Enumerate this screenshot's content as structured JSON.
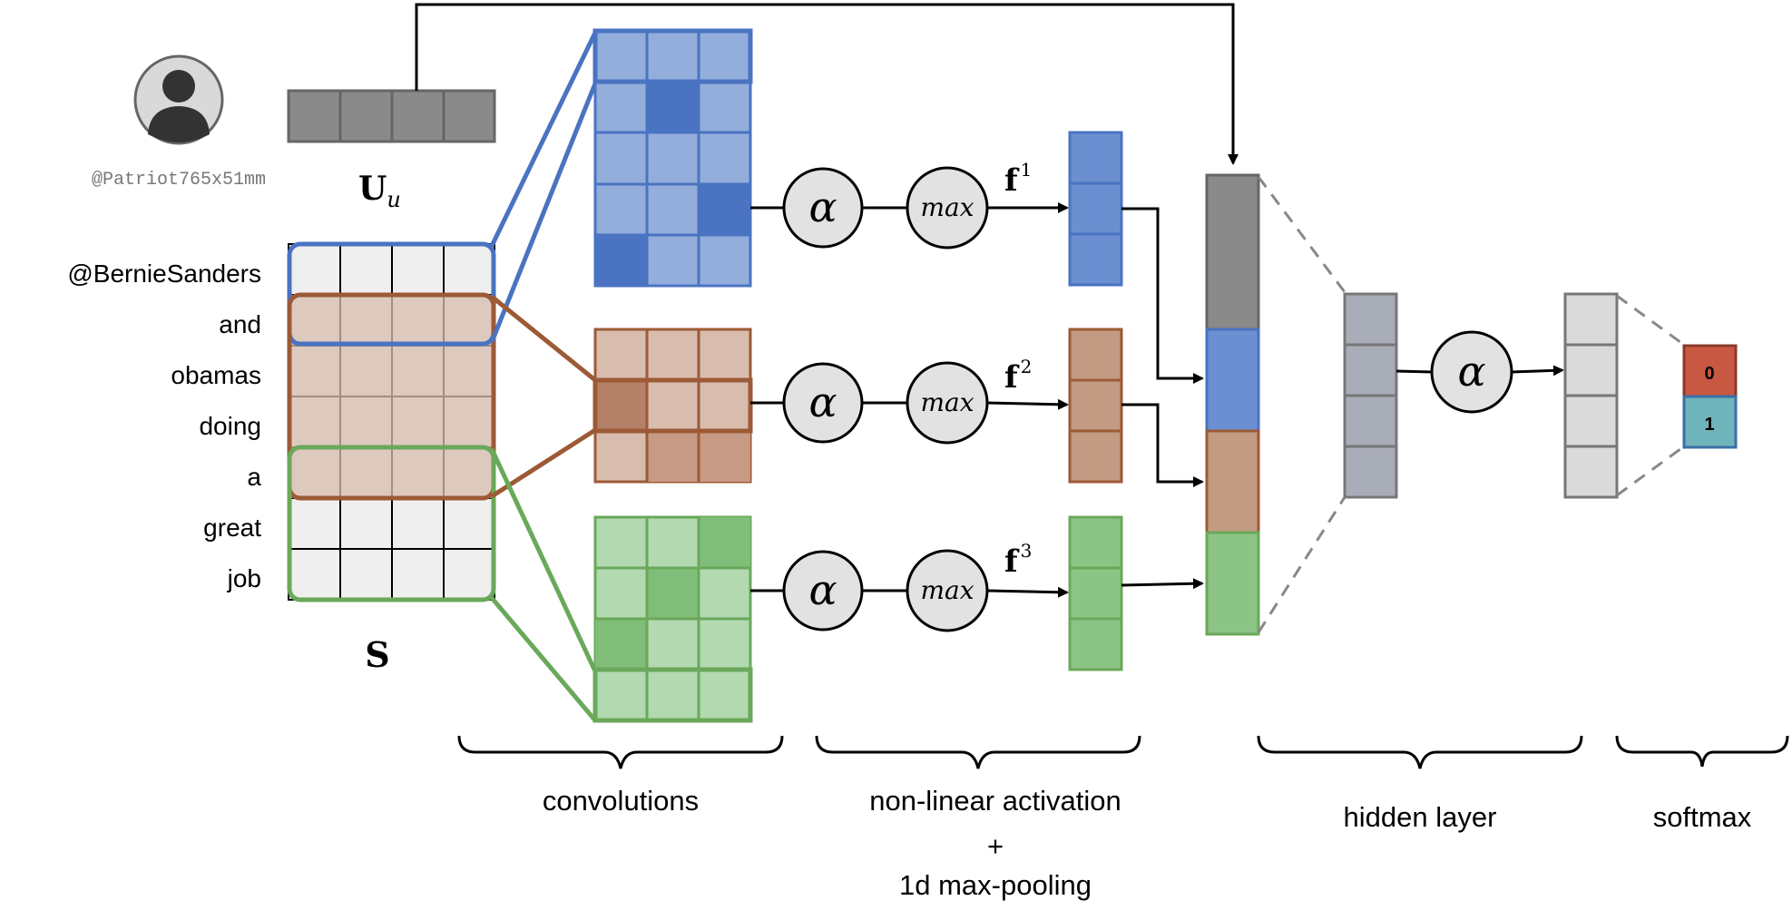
{
  "user": {
    "handle": "@Patriot765x51mm",
    "icon": "user-avatar-icon"
  },
  "labels": {
    "user_vector_main": "U",
    "user_vector_sub": "u",
    "sentence_matrix": "S",
    "alpha": "α",
    "max": "max",
    "f_base": "f",
    "f_sup": [
      "1",
      "2",
      "3"
    ],
    "softmax_outputs": [
      "0",
      "1"
    ]
  },
  "tokens": [
    "@BernieSanders",
    "and",
    "obamas",
    "doing",
    "a",
    "great",
    "job"
  ],
  "brackets": {
    "convolutions": "convolutions",
    "activation_lines": [
      "non-linear activation",
      "+",
      "1d max-pooling"
    ],
    "hidden": "hidden layer",
    "softmax": "softmax"
  },
  "colors": {
    "blue": "#4a73c2",
    "blue_light": "#93aedb",
    "brown": "#9c5a36",
    "brown_light": "#d8bcae",
    "green": "#6aa85a",
    "green_light": "#b3d9b1",
    "gray": "#8a8a8a",
    "softmax_0": "#c95842",
    "softmax_1": "#6fb4ba"
  }
}
